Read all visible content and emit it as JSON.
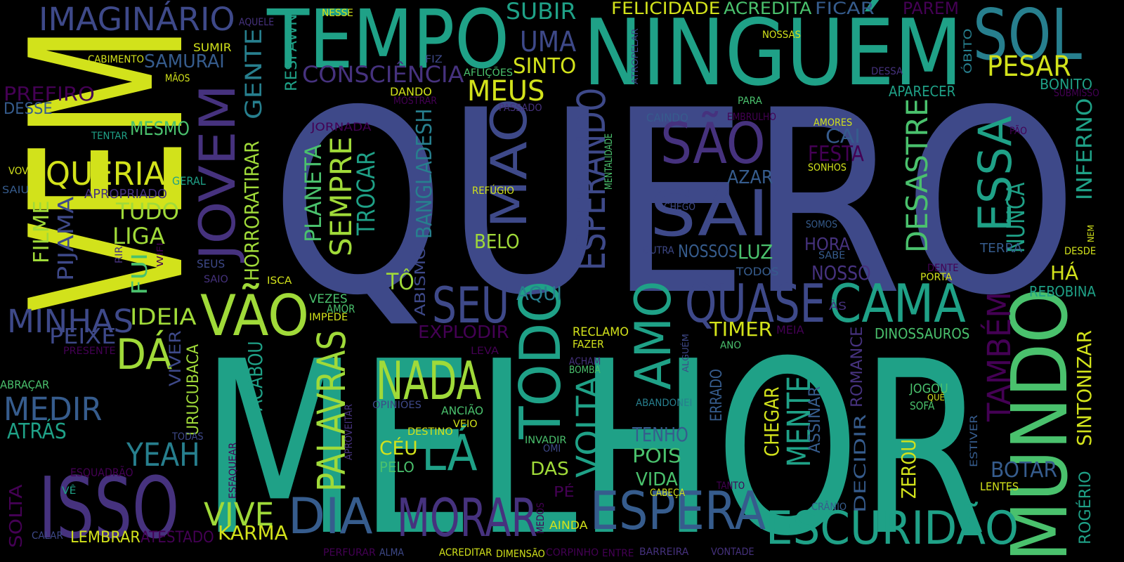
{
  "palette": {
    "yellow": "#d2e21b",
    "lime": "#a0da39",
    "green": "#4ac16d",
    "teal": "#1fa187",
    "tealblue": "#277f8e",
    "blue": "#365c8d",
    "indigo": "#3e4989",
    "purple": "#46327e",
    "dark": "#440154"
  },
  "words": [
    {
      "text": "QUERO",
      "color": "indigo"
    },
    {
      "text": "MELHOR",
      "color": "teal"
    },
    {
      "text": "VEM",
      "color": "yellow"
    },
    {
      "text": "NINGUÉM",
      "color": "teal"
    },
    {
      "text": "TEMPO",
      "color": "teal"
    },
    {
      "text": "SOL",
      "color": "tealblue"
    },
    {
      "text": "MUNDO",
      "color": "green"
    },
    {
      "text": "ISSO",
      "color": "purple"
    },
    {
      "text": "ESCURIDÃO",
      "color": "teal"
    },
    {
      "text": "ESPERA",
      "color": "blue"
    },
    {
      "text": "MORAR",
      "color": "purple"
    },
    {
      "text": "DIA",
      "color": "blue"
    },
    {
      "text": "TODO",
      "color": "teal"
    },
    {
      "text": "CAMA",
      "color": "teal"
    },
    {
      "text": "QUASE",
      "color": "indigo"
    },
    {
      "text": "SAI",
      "color": "indigo"
    },
    {
      "text": "SÃO",
      "color": "purple"
    },
    {
      "text": "NADA",
      "color": "lime"
    },
    {
      "text": "VÃO",
      "color": "lime"
    },
    {
      "text": "JOVEM",
      "color": "purple"
    },
    {
      "text": "AMO",
      "color": "teal"
    },
    {
      "text": "SEU",
      "color": "indigo"
    },
    {
      "text": "LÁ",
      "color": "teal"
    },
    {
      "text": "ESSA",
      "color": "teal"
    },
    {
      "text": "IMAGINÁRIO",
      "color": "indigo"
    },
    {
      "text": "MÃO",
      "color": "indigo"
    },
    {
      "text": "ESPERANDO",
      "color": "indigo"
    },
    {
      "text": "PALAVRAS",
      "color": "lime"
    },
    {
      "text": "DÁ",
      "color": "lime"
    },
    {
      "text": "MEDIR",
      "color": "blue"
    },
    {
      "text": "MINHAS",
      "color": "indigo"
    },
    {
      "text": "QUERIA",
      "color": "yellow"
    },
    {
      "text": "VIVE",
      "color": "lime"
    },
    {
      "text": "YEAH",
      "color": "tealblue"
    },
    {
      "text": "MEUS",
      "color": "yellow"
    },
    {
      "text": "UMA",
      "color": "indigo"
    },
    {
      "text": "SUBIR",
      "color": "teal"
    },
    {
      "text": "CONSCIÊNCIA",
      "color": "purple"
    },
    {
      "text": "PESAR",
      "color": "yellow"
    },
    {
      "text": "SINTO",
      "color": "yellow"
    },
    {
      "text": "GENTE",
      "color": "tealblue"
    },
    {
      "text": "SEMPRE",
      "color": "lime"
    },
    {
      "text": "TROCAR",
      "color": "teal"
    },
    {
      "text": "PLANETA",
      "color": "green"
    },
    {
      "text": "BANGLADESH",
      "color": "tealblue"
    },
    {
      "text": "DESASTRE",
      "color": "green"
    },
    {
      "text": "NUNCA",
      "color": "teal"
    },
    {
      "text": "TAMBÉM",
      "color": "dark"
    },
    {
      "text": "VOLTA",
      "color": "teal"
    },
    {
      "text": "MENTE",
      "color": "teal"
    },
    {
      "text": "HORRORATIRAR",
      "color": "lime"
    },
    {
      "text": "FILME",
      "color": "lime"
    },
    {
      "text": "PIJAMA",
      "color": "indigo"
    },
    {
      "text": "TUDO",
      "color": "lime"
    },
    {
      "text": "LIGA",
      "color": "lime"
    },
    {
      "text": "FUI",
      "color": "green"
    },
    {
      "text": "IDEIA",
      "color": "lime"
    },
    {
      "text": "PEIXE",
      "color": "indigo"
    },
    {
      "text": "ATRÁS",
      "color": "teal"
    },
    {
      "text": "FELICIDADE",
      "color": "yellow"
    },
    {
      "text": "ACREDITA",
      "color": "green"
    },
    {
      "text": "FICAR",
      "color": "blue"
    },
    {
      "text": "PAREM",
      "color": "dark"
    },
    {
      "text": "PREFIRO",
      "color": "dark"
    },
    {
      "text": "DESSE",
      "color": "blue"
    },
    {
      "text": "SAMURAI",
      "color": "blue"
    },
    {
      "text": "MESMO",
      "color": "green"
    },
    {
      "text": "EXPLODIR",
      "color": "dark"
    },
    {
      "text": "AQUI",
      "color": "tealblue"
    },
    {
      "text": "TIMER",
      "color": "yellow"
    },
    {
      "text": "CAI",
      "color": "blue"
    },
    {
      "text": "FESTA",
      "color": "dark"
    },
    {
      "text": "AZAR",
      "color": "blue"
    },
    {
      "text": "LUZ",
      "color": "green"
    },
    {
      "text": "NOSSOS",
      "color": "blue"
    },
    {
      "text": "HORA",
      "color": "purple"
    },
    {
      "text": "NOSSO",
      "color": "purple"
    },
    {
      "text": "BELO",
      "color": "lime"
    },
    {
      "text": "TÔ",
      "color": "lime"
    },
    {
      "text": "APARECER",
      "color": "teal"
    },
    {
      "text": "BONITO",
      "color": "teal"
    },
    {
      "text": "INFERNO",
      "color": "teal"
    },
    {
      "text": "HÁ",
      "color": "yellow"
    },
    {
      "text": "REBOBINA",
      "color": "teal"
    },
    {
      "text": "DINOSSAUROS",
      "color": "green"
    },
    {
      "text": "SINTONIZAR",
      "color": "yellow"
    },
    {
      "text": "BOTAR",
      "color": "blue"
    },
    {
      "text": "TENHO",
      "color": "blue"
    },
    {
      "text": "POIS",
      "color": "green"
    },
    {
      "text": "VIDA",
      "color": "green"
    },
    {
      "text": "DAS",
      "color": "lime"
    },
    {
      "text": "CÉU",
      "color": "yellow"
    },
    {
      "text": "PELO",
      "color": "green"
    },
    {
      "text": "KARMA",
      "color": "yellow"
    },
    {
      "text": "LEMBRAR",
      "color": "yellow"
    },
    {
      "text": "ATESTADO",
      "color": "dark"
    },
    {
      "text": "SOLTA",
      "color": "dark"
    },
    {
      "text": "CHEGAR",
      "color": "yellow"
    },
    {
      "text": "ASSINAR",
      "color": "blue"
    },
    {
      "text": "ERRADO",
      "color": "blue"
    },
    {
      "text": "DECIDIR",
      "color": "blue"
    },
    {
      "text": "ROMANCE",
      "color": "purple"
    },
    {
      "text": "ZEROU",
      "color": "yellow"
    },
    {
      "text": "ROGÉRIO",
      "color": "teal"
    },
    {
      "text": "LENTES",
      "color": "yellow"
    },
    {
      "text": "JOGOU",
      "color": "green"
    },
    {
      "text": "SOFÁ",
      "color": "green"
    },
    {
      "text": "ACABOU",
      "color": "teal"
    },
    {
      "text": "URUCUBACA",
      "color": "lime"
    },
    {
      "text": "VIVER",
      "color": "indigo"
    },
    {
      "text": "ABISMO",
      "color": "indigo"
    },
    {
      "text": "RESPAWN",
      "color": "teal"
    },
    {
      "text": "ABRAÇAR",
      "color": "green"
    },
    {
      "text": "VEZES",
      "color": "green"
    },
    {
      "text": "AMOR",
      "color": "green"
    },
    {
      "text": "IMPEDE",
      "color": "yellow"
    },
    {
      "text": "RECLAMO",
      "color": "yellow"
    },
    {
      "text": "FAZER",
      "color": "yellow"
    },
    {
      "text": "MEIA",
      "color": "dark"
    },
    {
      "text": "ANO",
      "color": "green"
    },
    {
      "text": "ÓBITO",
      "color": "tealblue"
    },
    {
      "text": "NESSE",
      "color": "yellow"
    },
    {
      "text": "AQUELE",
      "color": "purple"
    },
    {
      "text": "CABIMENTO",
      "color": "yellow"
    },
    {
      "text": "SUMIR",
      "color": "yellow"
    },
    {
      "text": "MÃOS",
      "color": "yellow"
    },
    {
      "text": "FIZ",
      "color": "indigo"
    },
    {
      "text": "AFLIÇÕES",
      "color": "green"
    },
    {
      "text": "NOSSAS",
      "color": "yellow"
    },
    {
      "text": "DESSA",
      "color": "purple"
    },
    {
      "text": "SUBMISSO",
      "color": "dark"
    },
    {
      "text": "DANDO",
      "color": "yellow"
    },
    {
      "text": "MOSTRAR",
      "color": "dark"
    },
    {
      "text": "PASSADO",
      "color": "purple"
    },
    {
      "text": "PARA",
      "color": "green"
    },
    {
      "text": "CAINDO",
      "color": "blue"
    },
    {
      "text": "EMBRULHO",
      "color": "dark"
    },
    {
      "text": "AMORES",
      "color": "yellow"
    },
    {
      "text": "PÃO",
      "color": "dark"
    },
    {
      "text": "JORNADA",
      "color": "dark"
    },
    {
      "text": "TENTAR",
      "color": "teal"
    },
    {
      "text": "VOVÔ",
      "color": "yellow"
    },
    {
      "text": "SAIU",
      "color": "blue"
    },
    {
      "text": "GERAL",
      "color": "teal"
    },
    {
      "text": "APROPRIADO",
      "color": "purple"
    },
    {
      "text": "RIR",
      "color": "purple"
    },
    {
      "text": "WIFI",
      "color": "dark"
    },
    {
      "text": "SEUS",
      "color": "indigo"
    },
    {
      "text": "SAIO",
      "color": "purple"
    },
    {
      "text": "ISCA",
      "color": "yellow"
    },
    {
      "text": "REFÚGIO",
      "color": "yellow"
    },
    {
      "text": "MENTALIDADE",
      "color": "green"
    },
    {
      "text": "SONHOS",
      "color": "yellow"
    },
    {
      "text": "CHEGO",
      "color": "indigo"
    },
    {
      "text": "SOMOS",
      "color": "blue"
    },
    {
      "text": "OUTRA",
      "color": "indigo"
    },
    {
      "text": "SABE",
      "color": "blue"
    },
    {
      "text": "TODOS",
      "color": "blue"
    },
    {
      "text": "TERRA",
      "color": "blue"
    },
    {
      "text": "DENTE",
      "color": "dark"
    },
    {
      "text": "PORTA",
      "color": "yellow"
    },
    {
      "text": "NEM",
      "color": "yellow"
    },
    {
      "text": "DESDE",
      "color": "yellow"
    },
    {
      "text": "ÀS",
      "color": "purple"
    },
    {
      "text": "PRESENTE",
      "color": "dark"
    },
    {
      "text": "LEVA",
      "color": "dark"
    },
    {
      "text": "ACHAM",
      "color": "purple"
    },
    {
      "text": "BOMBA",
      "color": "green"
    },
    {
      "text": "ALGUÉM",
      "color": "indigo"
    },
    {
      "text": "ABANDONEI",
      "color": "tealblue"
    },
    {
      "text": "OPINIÕES",
      "color": "indigo"
    },
    {
      "text": "ANCIÃO",
      "color": "green"
    },
    {
      "text": "DESTINO",
      "color": "yellow"
    },
    {
      "text": "VEIO",
      "color": "yellow"
    },
    {
      "text": "APROVEITAR",
      "color": "purple"
    },
    {
      "text": "INVADIR",
      "color": "green"
    },
    {
      "text": "OMI",
      "color": "indigo"
    },
    {
      "text": "TODAS",
      "color": "indigo"
    },
    {
      "text": "ESFAQUEAR",
      "color": "dark"
    },
    {
      "text": "ESQUADRÃO",
      "color": "dark"
    },
    {
      "text": "VÊ",
      "color": "teal"
    },
    {
      "text": "CALAR",
      "color": "indigo"
    },
    {
      "text": "PERFURAR",
      "color": "dark"
    },
    {
      "text": "ALMA",
      "color": "indigo"
    },
    {
      "text": "ACREDITAR",
      "color": "yellow"
    },
    {
      "text": "DIMENSÃO",
      "color": "yellow"
    },
    {
      "text": "CORPINHO",
      "color": "dark"
    },
    {
      "text": "ENTRE",
      "color": "dark"
    },
    {
      "text": "BARREIRA",
      "color": "purple"
    },
    {
      "text": "VONTADE",
      "color": "purple"
    },
    {
      "text": "MEDOS",
      "color": "dark"
    },
    {
      "text": "PÉ",
      "color": "dark"
    },
    {
      "text": "AINDA",
      "color": "yellow"
    },
    {
      "text": "CABEÇA",
      "color": "yellow"
    },
    {
      "text": "TANTO",
      "color": "dark"
    },
    {
      "text": "CRÂNIO",
      "color": "blue"
    },
    {
      "text": "ESTIVER",
      "color": "blue"
    },
    {
      "text": "QUÊ",
      "color": "yellow"
    },
    {
      "text": "ATROPELAR",
      "color": "indigo"
    }
  ]
}
